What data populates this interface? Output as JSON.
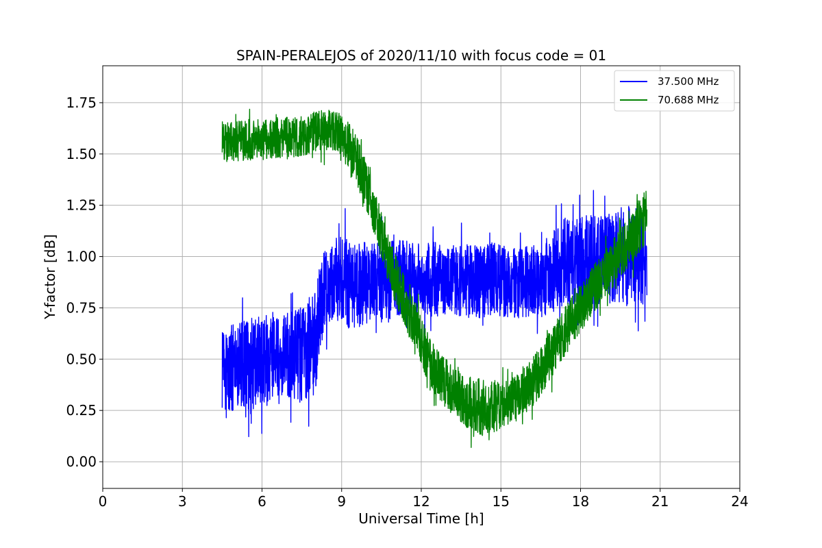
{
  "chart_data": {
    "type": "line",
    "title": "SPAIN-PERALEJOS of 2020/11/10 with focus code = 01",
    "xlabel": "Universal Time [h]",
    "ylabel": "Y-factor [dB]",
    "xlim": [
      0,
      24
    ],
    "ylim": [
      -0.13,
      1.93
    ],
    "xticks": [
      0,
      3,
      6,
      9,
      12,
      15,
      18,
      21,
      24
    ],
    "xtick_labels": [
      "0",
      "3",
      "6",
      "9",
      "12",
      "15",
      "18",
      "21",
      "24"
    ],
    "yticks": [
      0.0,
      0.25,
      0.5,
      0.75,
      1.0,
      1.25,
      1.5,
      1.75
    ],
    "ytick_labels": [
      "0.00",
      "0.25",
      "0.50",
      "0.75",
      "1.00",
      "1.25",
      "1.50",
      "1.75"
    ],
    "grid": true,
    "legend": "top-right",
    "series": [
      {
        "name": "37.500 MHz",
        "color": "#0000ff",
        "x": [
          4.5,
          5.0,
          5.5,
          6.0,
          6.5,
          7.0,
          7.5,
          8.0,
          8.3,
          8.6,
          9.0,
          9.5,
          10.0,
          10.5,
          11.0,
          11.5,
          12.0,
          12.5,
          13.0,
          13.5,
          14.0,
          14.5,
          15.0,
          15.5,
          16.0,
          16.5,
          17.0,
          17.5,
          18.0,
          18.5,
          19.0,
          19.5,
          20.0,
          20.5
        ],
        "mean": [
          0.45,
          0.46,
          0.47,
          0.49,
          0.5,
          0.51,
          0.53,
          0.58,
          0.82,
          0.88,
          0.88,
          0.86,
          0.87,
          0.88,
          0.88,
          0.9,
          0.89,
          0.89,
          0.88,
          0.88,
          0.88,
          0.88,
          0.89,
          0.88,
          0.88,
          0.88,
          0.93,
          0.98,
          0.98,
          0.98,
          0.99,
          1.0,
          1.0,
          1.0
        ],
        "spread": [
          0.2,
          0.22,
          0.22,
          0.22,
          0.22,
          0.22,
          0.24,
          0.25,
          0.2,
          0.2,
          0.22,
          0.22,
          0.2,
          0.2,
          0.2,
          0.18,
          0.18,
          0.18,
          0.18,
          0.18,
          0.18,
          0.18,
          0.18,
          0.18,
          0.18,
          0.18,
          0.2,
          0.22,
          0.22,
          0.22,
          0.22,
          0.24,
          0.24,
          0.24
        ]
      },
      {
        "name": "70.688 MHz",
        "color": "#008000",
        "x": [
          4.5,
          5.0,
          5.5,
          6.0,
          6.5,
          7.0,
          7.5,
          8.0,
          8.5,
          9.0,
          9.5,
          10.0,
          10.5,
          11.0,
          11.5,
          12.0,
          12.5,
          13.0,
          13.5,
          14.0,
          14.5,
          15.0,
          15.5,
          16.0,
          16.5,
          17.0,
          17.5,
          18.0,
          18.5,
          19.0,
          19.5,
          20.0,
          20.5
        ],
        "mean": [
          1.56,
          1.56,
          1.57,
          1.57,
          1.58,
          1.58,
          1.59,
          1.61,
          1.62,
          1.6,
          1.5,
          1.32,
          1.1,
          0.9,
          0.74,
          0.58,
          0.45,
          0.37,
          0.31,
          0.27,
          0.26,
          0.28,
          0.31,
          0.36,
          0.44,
          0.55,
          0.65,
          0.75,
          0.84,
          0.93,
          1.02,
          1.1,
          1.2
        ],
        "spread": [
          0.1,
          0.1,
          0.1,
          0.1,
          0.1,
          0.1,
          0.1,
          0.1,
          0.1,
          0.1,
          0.12,
          0.12,
          0.12,
          0.12,
          0.12,
          0.12,
          0.12,
          0.12,
          0.12,
          0.14,
          0.14,
          0.12,
          0.12,
          0.12,
          0.12,
          0.12,
          0.12,
          0.12,
          0.12,
          0.12,
          0.12,
          0.12,
          0.14
        ]
      }
    ]
  }
}
